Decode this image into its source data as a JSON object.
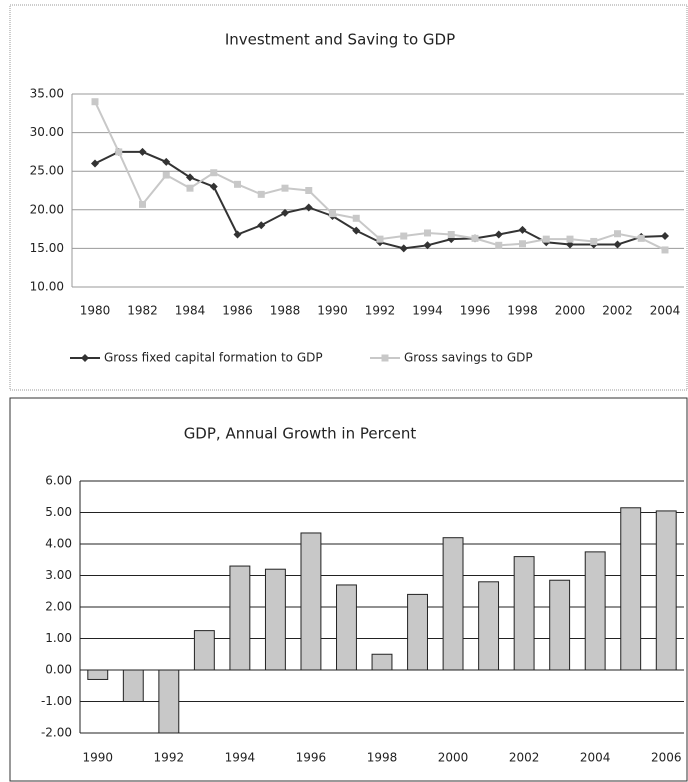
{
  "chart_data": [
    {
      "type": "line",
      "title": "Investment and Saving to GDP",
      "x": [
        1980,
        1981,
        1982,
        1983,
        1984,
        1985,
        1986,
        1987,
        1988,
        1989,
        1990,
        1991,
        1992,
        1993,
        1994,
        1995,
        1996,
        1997,
        1998,
        1999,
        2000,
        2001,
        2002,
        2003,
        2004
      ],
      "series": [
        {
          "name": "Gross fixed capital formation to GDP",
          "color": "#333333",
          "marker": "diamond",
          "values": [
            26,
            27.5,
            27.5,
            26.2,
            24.2,
            23,
            16.8,
            18,
            19.6,
            20.3,
            19.2,
            17.3,
            15.8,
            15,
            15.4,
            16.2,
            16.3,
            16.8,
            17.4,
            15.8,
            15.5,
            15.5,
            15.5,
            16.5,
            16.6
          ]
        },
        {
          "name": "Gross savings to GDP",
          "color": "#c8c8c8",
          "marker": "square",
          "values": [
            34,
            27.5,
            20.7,
            24.5,
            22.8,
            24.8,
            23.3,
            22,
            22.8,
            22.5,
            19.5,
            18.9,
            16.2,
            16.6,
            17,
            16.8,
            16.3,
            15.4,
            15.6,
            16.2,
            16.2,
            15.9,
            16.9,
            16.3,
            14.8
          ]
        }
      ],
      "xlim": [
        1980,
        2004
      ],
      "xticks": [
        1980,
        1982,
        1984,
        1986,
        1988,
        1990,
        1992,
        1994,
        1996,
        1998,
        2000,
        2002,
        2004
      ],
      "ylim": [
        10,
        35
      ],
      "yticks": [
        {
          "value": 10,
          "label": "10.00"
        },
        {
          "value": 15,
          "label": "15.00"
        },
        {
          "value": 20,
          "label": "20.00"
        },
        {
          "value": 25,
          "label": "25.00"
        },
        {
          "value": 30,
          "label": "30.00"
        },
        {
          "value": 35,
          "label": "35.00"
        }
      ],
      "grid": true,
      "legend": "bottom"
    },
    {
      "type": "bar",
      "title": "GDP, Annual Growth in Percent",
      "categories": [
        "1990",
        null,
        "1992",
        null,
        "1994",
        null,
        "1996",
        null,
        "1998",
        null,
        "2000",
        null,
        "2002",
        null,
        "2004",
        null,
        "2006"
      ],
      "values": [
        -0.3,
        -1.0,
        -2.0,
        1.25,
        3.3,
        3.2,
        4.35,
        2.7,
        0.5,
        2.4,
        4.2,
        2.8,
        3.6,
        2.85,
        3.75,
        5.15,
        5.05
      ],
      "color": "#c8c8c8",
      "ylim": [
        -2,
        6
      ],
      "yticks": [
        {
          "value": -2,
          "label": "-2.00"
        },
        {
          "value": -1,
          "label": "-1.00"
        },
        {
          "value": 0,
          "label": "0.00"
        },
        {
          "value": 1,
          "label": "1.00"
        },
        {
          "value": 2,
          "label": "2.00"
        },
        {
          "value": 3,
          "label": "3.00"
        },
        {
          "value": 4,
          "label": "4.00"
        },
        {
          "value": 5,
          "label": "5.00"
        },
        {
          "value": 6,
          "label": "6.00"
        }
      ],
      "grid": true
    }
  ]
}
